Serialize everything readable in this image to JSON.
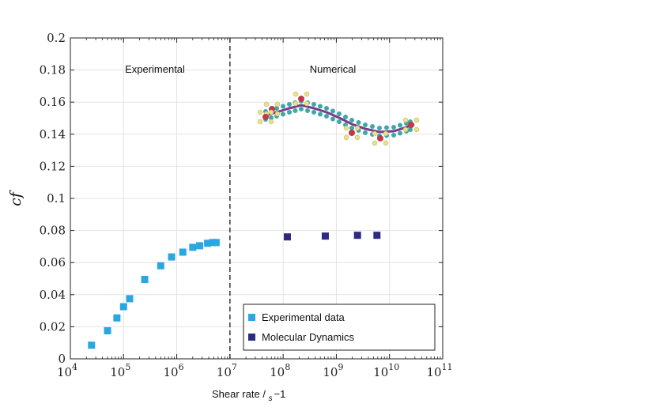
{
  "chart_data": {
    "type": "scatter",
    "xlabel": "Shear rate / s−1",
    "xlabel_main": "Shear rate / ",
    "xlabel_unit": "s",
    "xlabel_exp": "−1",
    "ylabel": "cf",
    "x_scale": "log",
    "xlim": [
      10000,
      100000000000
    ],
    "ylim": [
      0,
      0.2
    ],
    "x_tick_labels": [
      {
        "base": "10",
        "exp": "4"
      },
      {
        "base": "10",
        "exp": "5"
      },
      {
        "base": "10",
        "exp": "6"
      },
      {
        "base": "10",
        "exp": "7"
      },
      {
        "base": "10",
        "exp": "8"
      },
      {
        "base": "10",
        "exp": "9"
      },
      {
        "base": "10",
        "exp": "10"
      },
      {
        "base": "10",
        "exp": "11"
      }
    ],
    "y_tick_labels": [
      "0",
      "0.02",
      "0.04",
      "0.06",
      "0.08",
      "0.1",
      "0.12",
      "0.14",
      "0.16",
      "0.18",
      "0.2"
    ],
    "grid": true,
    "divider_x": 10000000,
    "region_labels": [
      "Experimental",
      "Numerical"
    ],
    "legend_position": "bottom-right",
    "series": [
      {
        "name": "Experimental data",
        "color": "#2aa7e1",
        "points": [
          [
            25000,
            0.0085
          ],
          [
            50000,
            0.0175
          ],
          [
            75000,
            0.0255
          ],
          [
            100000,
            0.0325
          ],
          [
            130000,
            0.0375
          ],
          [
            250000,
            0.0495
          ],
          [
            500000,
            0.058
          ],
          [
            800000,
            0.0635
          ],
          [
            1300000,
            0.0665
          ],
          [
            2000000,
            0.0695
          ],
          [
            2700000,
            0.0705
          ],
          [
            3800000,
            0.072
          ],
          [
            4700000,
            0.0725
          ],
          [
            5500000,
            0.0725
          ]
        ]
      },
      {
        "name": "Molecular Dynamics",
        "color": "#2e2a82",
        "points": [
          [
            120000000,
            0.076
          ],
          [
            620000000,
            0.0765
          ],
          [
            2500000000,
            0.077
          ],
          [
            5800000000,
            0.077
          ]
        ]
      }
    ]
  }
}
